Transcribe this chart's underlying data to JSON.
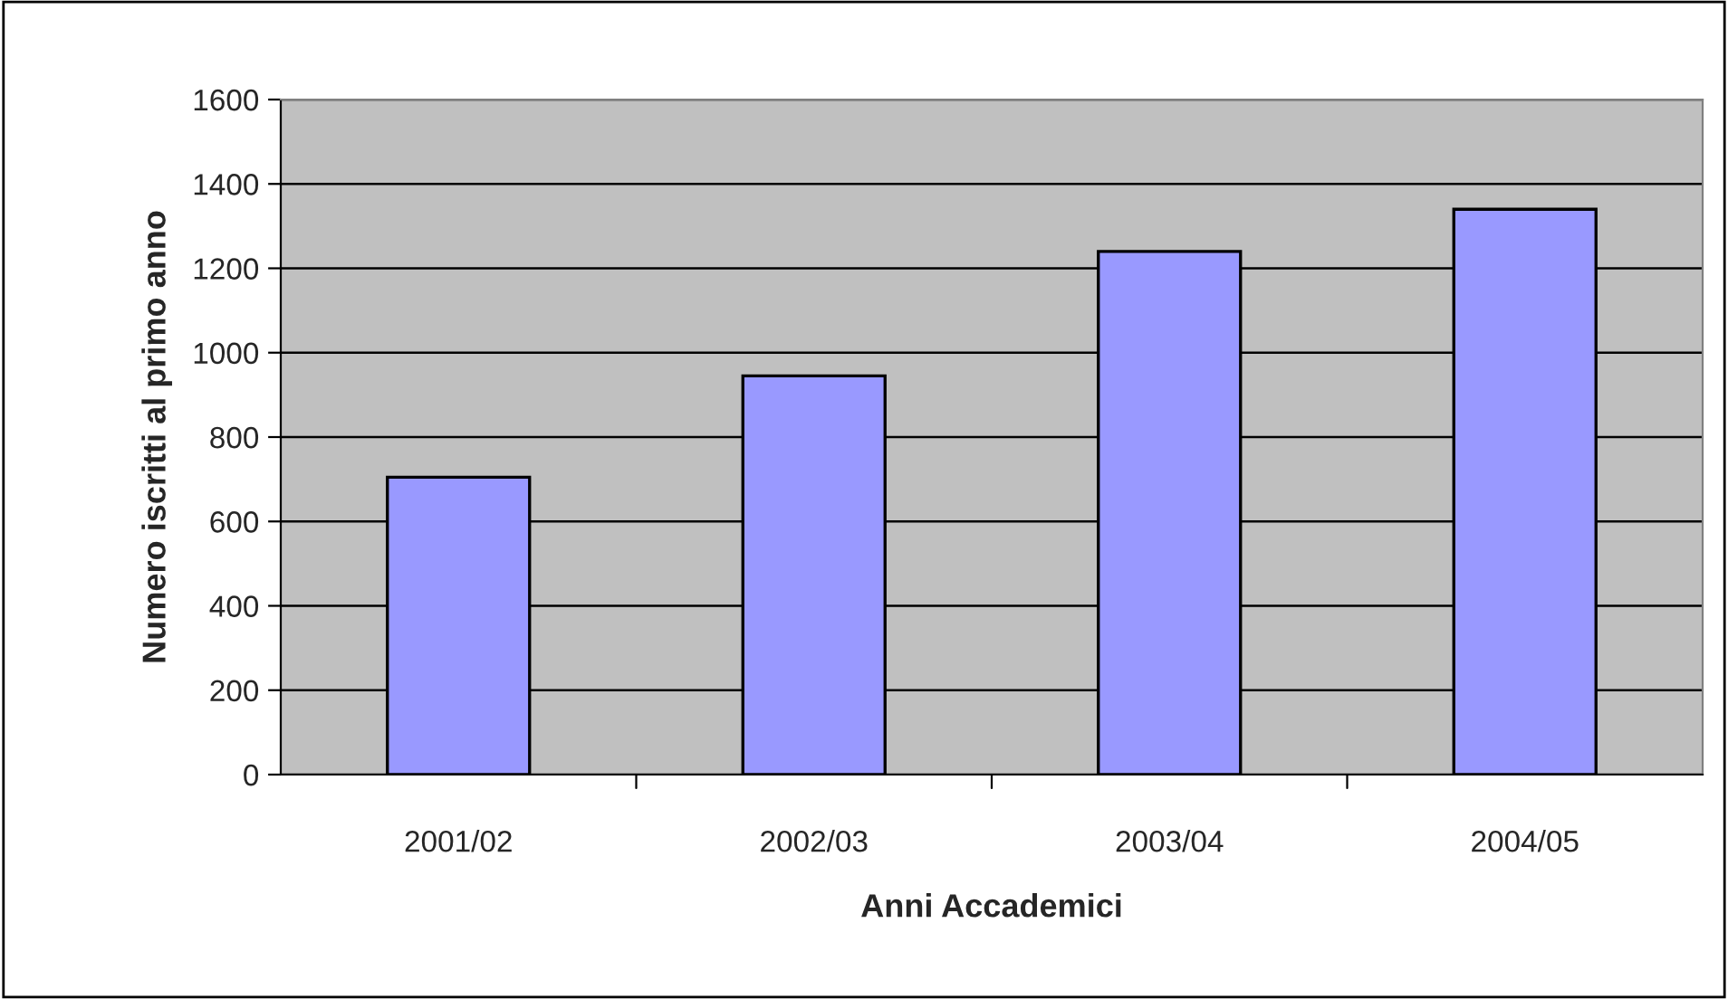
{
  "chart_data": {
    "type": "bar",
    "xlabel": "Anni Accademici",
    "ylabel": "Numero iscritti al primo anno",
    "categories": [
      "2001/02",
      "2002/03",
      "2003/04",
      "2004/05"
    ],
    "values": [
      705,
      945,
      1240,
      1340
    ],
    "color": "#9999ff",
    "ylim": [
      0,
      1600
    ],
    "yticks": [
      0,
      200,
      400,
      600,
      800,
      1000,
      1200,
      1400,
      1600
    ],
    "grid": "y",
    "legend": false
  }
}
